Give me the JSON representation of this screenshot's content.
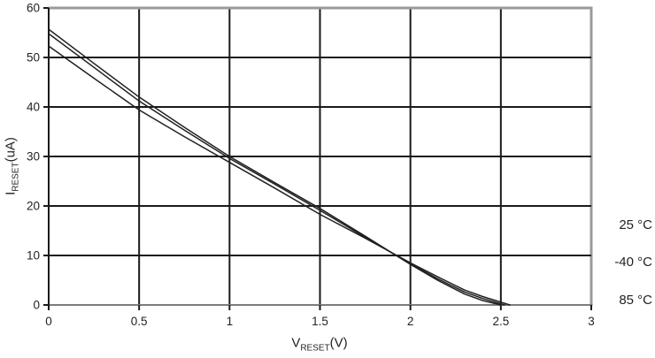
{
  "chart_data": {
    "type": "line",
    "title": "",
    "xlabel": {
      "prefix": "V",
      "sub": "RESET",
      "suffix": "(V)"
    },
    "ylabel": {
      "prefix": "I",
      "sub": "RESET",
      "suffix": "(uA)"
    },
    "xlim": [
      0,
      3
    ],
    "ylim": [
      0,
      60
    ],
    "xticks": [
      0,
      0.5,
      1,
      1.5,
      2,
      2.5,
      3
    ],
    "xtick_labels": [
      "0",
      "0.5",
      "1",
      "1.5",
      "2",
      "2.5",
      "3"
    ],
    "yticks": [
      0,
      10,
      20,
      30,
      40,
      50,
      60
    ],
    "ytick_labels": [
      "0",
      "10",
      "20",
      "30",
      "40",
      "50",
      "60"
    ],
    "grid": true,
    "legend_position": "right-outside",
    "legend": [
      "25 °C",
      "-40 °C",
      "85 °C"
    ],
    "colors": {
      "line": "#231f20",
      "gridline": "#1a1a1a",
      "border": "#9a9a9a",
      "bottom_axis": "#7d7d7d",
      "text": "#231f20"
    },
    "series": [
      {
        "name": "-40 °C",
        "x": [
          0,
          0.25,
          0.5,
          0.75,
          1.0,
          1.25,
          1.5,
          1.75,
          2.0,
          2.15,
          2.3,
          2.4,
          2.5
        ],
        "y": [
          55.7,
          48.8,
          42.0,
          35.9,
          30.0,
          24.7,
          19.5,
          13.9,
          8.2,
          5.0,
          2.2,
          0.9,
          0
        ]
      },
      {
        "name": "25 °C",
        "x": [
          0,
          0.25,
          0.5,
          0.75,
          1.0,
          1.25,
          1.5,
          1.75,
          2.0,
          2.15,
          2.3,
          2.4,
          2.52
        ],
        "y": [
          54.8,
          48.0,
          41.2,
          35.3,
          29.6,
          24.4,
          19.1,
          13.7,
          8.3,
          5.3,
          2.6,
          1.3,
          0
        ]
      },
      {
        "name": "85 °C",
        "x": [
          0,
          0.25,
          0.5,
          0.75,
          1.0,
          1.25,
          1.5,
          1.75,
          2.0,
          2.15,
          2.3,
          2.4,
          2.55
        ],
        "y": [
          52.3,
          45.8,
          39.4,
          34.0,
          28.8,
          23.6,
          18.3,
          13.5,
          8.5,
          5.7,
          3.0,
          1.7,
          0
        ]
      }
    ]
  }
}
